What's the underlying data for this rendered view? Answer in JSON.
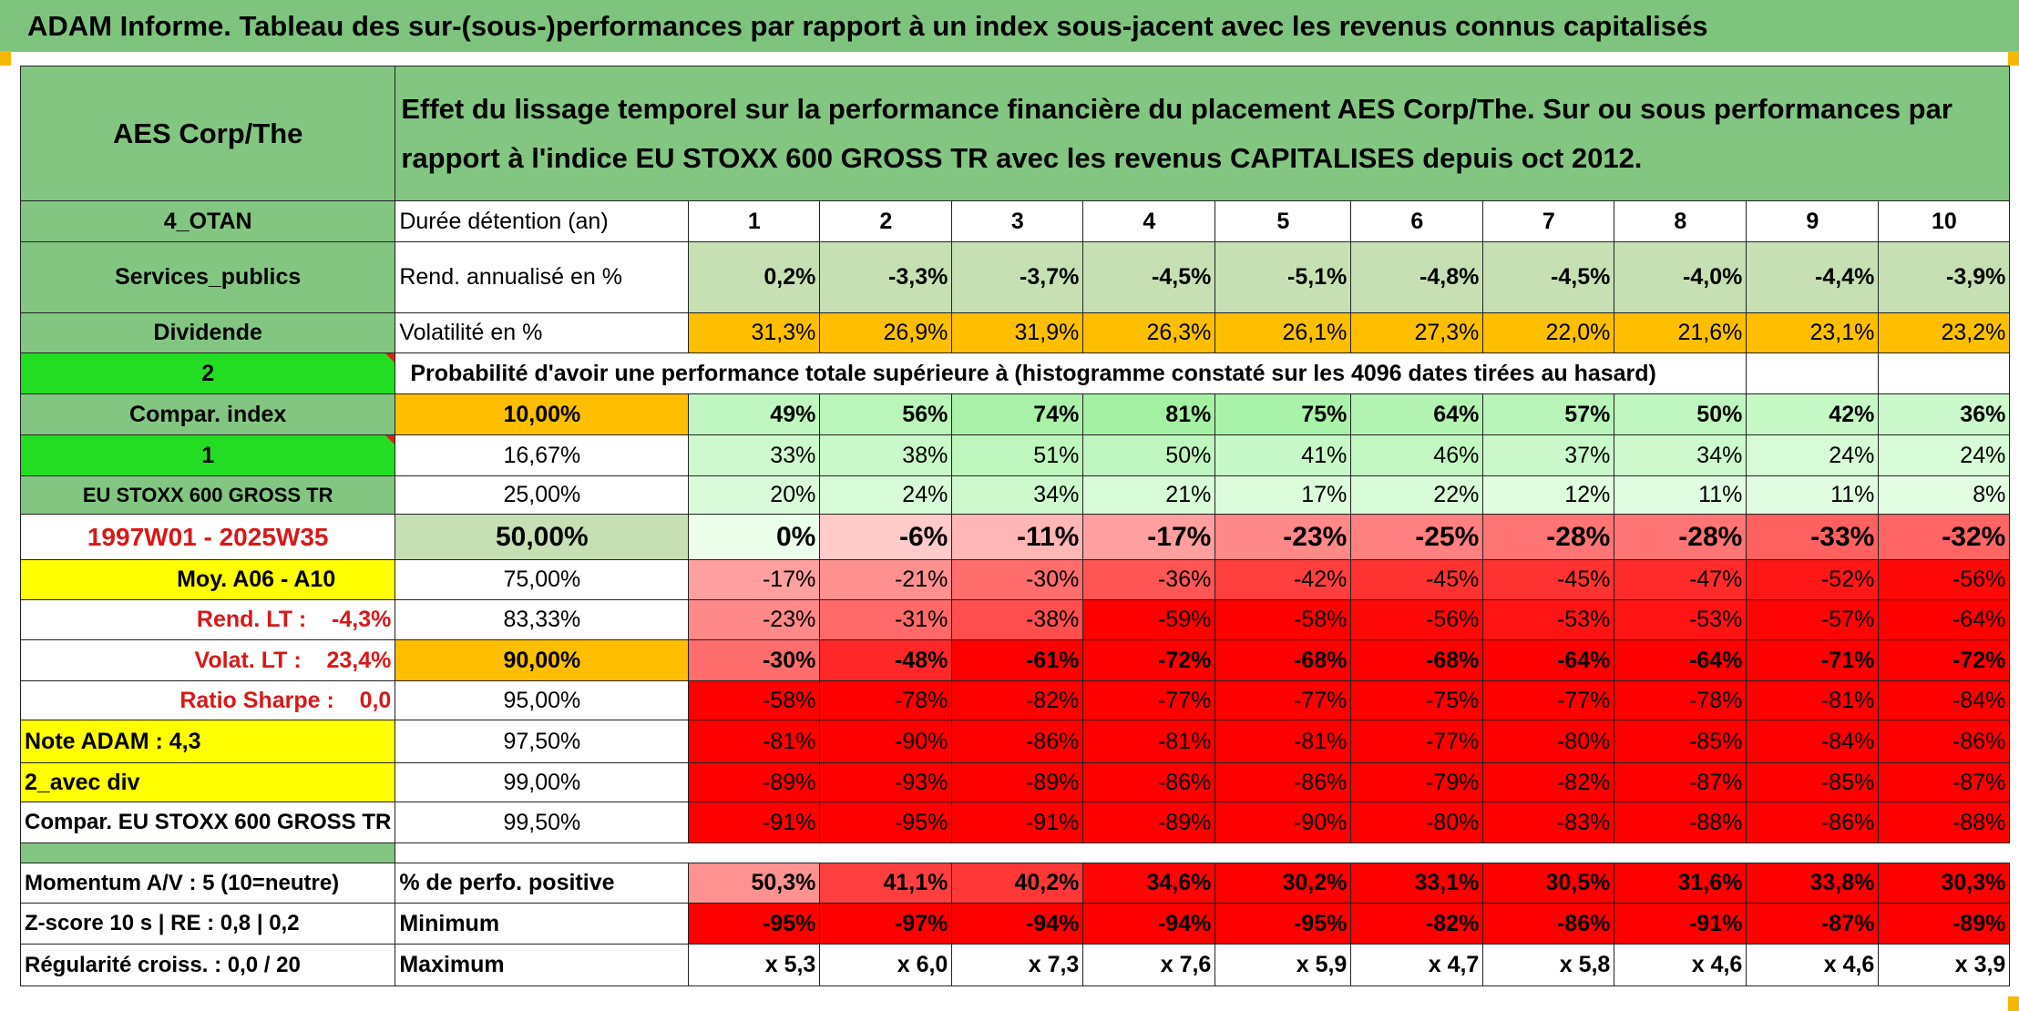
{
  "title": "ADAM Informe. Tableau des sur-(sous-)performances par rapport à un index sous-jacent avec les revenus connus capitalisés",
  "header": {
    "asset": "AES Corp/The",
    "description": "Effet du lissage temporel sur la performance financière du placement AES Corp/The. Sur ou sous performances par rapport à l'indice EU STOXX 600 GROSS TR avec les revenus CAPITALISES depuis oct 2012."
  },
  "left_labels": {
    "code": "4_OTAN",
    "sector": "Services_publics",
    "dividend": "Dividende",
    "n2": "2",
    "compar_index": "Compar. index",
    "n1": "1",
    "index_name": "EU STOXX 600 GROSS TR",
    "period": "1997W01 - 2025W35",
    "moy": "Moy. A06 - A10",
    "rend_lt": "Rend. LT :    -4,3%",
    "volat_lt": "Volat. LT :    23,4%",
    "sharpe": "Ratio Sharpe :    0,0",
    "note": "Note ADAM : 4,3",
    "avec_div": "2_avec div",
    "compar_full": "Compar. EU STOXX 600 GROSS TR",
    "momentum": "Momentum A/V : 5 (10=neutre)",
    "zscore": "Z-score 10 s | RE : 0,8 | 0,2",
    "regularite": "Régularité croiss. : 0,0 / 20"
  },
  "row_labels": {
    "duree": "Durée détention (an)",
    "rend": "Rend. annualisé en %",
    "volat": "Volatilité en %",
    "proba": "Probabilité d'avoir une performance totale supérieure à (histogramme constaté sur les 4096 dates tirées au hasard)",
    "perf_pos": "% de perfo. positive",
    "minimum": "Minimum",
    "maximum": "Maximum"
  },
  "years": [
    "1",
    "2",
    "3",
    "4",
    "5",
    "6",
    "7",
    "8",
    "9",
    "10"
  ],
  "rend_annualise": [
    "0,2%",
    "-3,3%",
    "-3,7%",
    "-4,5%",
    "-5,1%",
    "-4,8%",
    "-4,5%",
    "-4,0%",
    "-4,4%",
    "-3,9%"
  ],
  "volatilite": [
    "31,3%",
    "26,9%",
    "31,9%",
    "26,3%",
    "26,1%",
    "27,3%",
    "22,0%",
    "21,6%",
    "23,1%",
    "23,2%"
  ],
  "probability_rows": [
    {
      "threshold": "10,00%",
      "values": [
        "49%",
        "56%",
        "74%",
        "81%",
        "75%",
        "64%",
        "57%",
        "50%",
        "42%",
        "36%"
      ]
    },
    {
      "threshold": "16,67%",
      "values": [
        "33%",
        "38%",
        "51%",
        "50%",
        "41%",
        "46%",
        "37%",
        "34%",
        "24%",
        "24%"
      ]
    },
    {
      "threshold": "25,00%",
      "values": [
        "20%",
        "24%",
        "34%",
        "21%",
        "17%",
        "22%",
        "12%",
        "11%",
        "11%",
        "8%"
      ]
    },
    {
      "threshold": "50,00%",
      "values": [
        "0%",
        "-6%",
        "-11%",
        "-17%",
        "-23%",
        "-25%",
        "-28%",
        "-28%",
        "-33%",
        "-32%"
      ]
    },
    {
      "threshold": "75,00%",
      "values": [
        "-17%",
        "-21%",
        "-30%",
        "-36%",
        "-42%",
        "-45%",
        "-45%",
        "-47%",
        "-52%",
        "-56%"
      ]
    },
    {
      "threshold": "83,33%",
      "values": [
        "-23%",
        "-31%",
        "-38%",
        "-59%",
        "-58%",
        "-56%",
        "-53%",
        "-53%",
        "-57%",
        "-64%"
      ]
    },
    {
      "threshold": "90,00%",
      "values": [
        "-30%",
        "-48%",
        "-61%",
        "-72%",
        "-68%",
        "-68%",
        "-64%",
        "-64%",
        "-71%",
        "-72%"
      ]
    },
    {
      "threshold": "95,00%",
      "values": [
        "-58%",
        "-78%",
        "-82%",
        "-77%",
        "-77%",
        "-75%",
        "-77%",
        "-78%",
        "-81%",
        "-84%"
      ]
    },
    {
      "threshold": "97,50%",
      "values": [
        "-81%",
        "-90%",
        "-86%",
        "-81%",
        "-81%",
        "-77%",
        "-80%",
        "-85%",
        "-84%",
        "-86%"
      ]
    },
    {
      "threshold": "99,00%",
      "values": [
        "-89%",
        "-93%",
        "-89%",
        "-86%",
        "-86%",
        "-79%",
        "-82%",
        "-87%",
        "-85%",
        "-87%"
      ]
    },
    {
      "threshold": "99,50%",
      "values": [
        "-91%",
        "-95%",
        "-91%",
        "-89%",
        "-90%",
        "-80%",
        "-83%",
        "-88%",
        "-86%",
        "-88%"
      ]
    }
  ],
  "perf_positive": [
    "50,3%",
    "41,1%",
    "40,2%",
    "34,6%",
    "30,2%",
    "33,1%",
    "30,5%",
    "31,6%",
    "33,8%",
    "30,3%"
  ],
  "minimum": [
    "-95%",
    "-97%",
    "-94%",
    "-94%",
    "-95%",
    "-82%",
    "-86%",
    "-91%",
    "-87%",
    "-89%"
  ],
  "maximum": [
    "x 5,3",
    "x 6,0",
    "x 7,3",
    "x 7,6",
    "x 5,9",
    "x 4,7",
    "x 5,8",
    "x 4,6",
    "x 4,6",
    "x 3,9"
  ],
  "colors": {
    "header_green": "#82c682",
    "bright_green": "#22dd22",
    "orange": "#ffbf00",
    "yellow": "#ffff00",
    "red": "#ff0000",
    "label_red_text": "#d81818"
  }
}
